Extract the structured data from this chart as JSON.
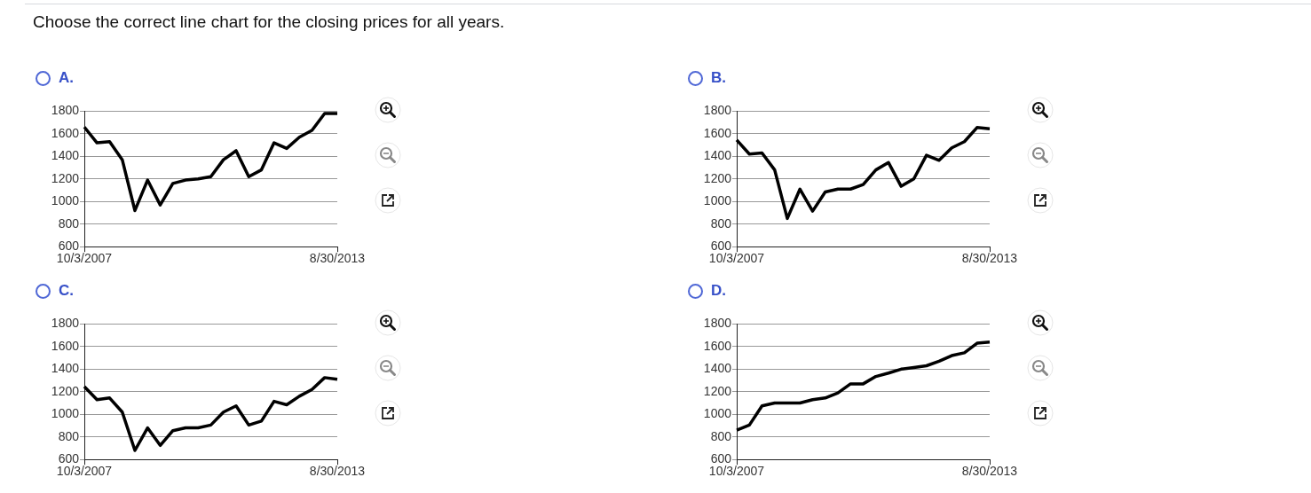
{
  "chart_data": [
    {
      "type": "line",
      "title": "A.",
      "annotations": [
        "Choose the correct line chart for the closing prices for all years."
      ],
      "categories": [
        "10/3/2007",
        null,
        null,
        null,
        null,
        null,
        null,
        null,
        null,
        null,
        null,
        null,
        null,
        null,
        null,
        null,
        null,
        null,
        null,
        null,
        "8/30/2013"
      ],
      "values": [
        1660,
        1520,
        1530,
        1370,
        920,
        1190,
        970,
        1160,
        1190,
        1200,
        1220,
        1370,
        1450,
        1220,
        1280,
        1520,
        1470,
        1570,
        1630,
        1780,
        1780
      ],
      "color": "#000000",
      "ylim": [
        600,
        1800
      ],
      "yticks": [
        600,
        800,
        1000,
        1200,
        1400,
        1600,
        1800
      ],
      "grid": "y",
      "marker": "none"
    },
    {
      "type": "line",
      "title": "B.",
      "categories": [
        "10/3/2007",
        null,
        null,
        null,
        null,
        null,
        null,
        null,
        null,
        null,
        null,
        null,
        null,
        null,
        null,
        null,
        null,
        null,
        null,
        null,
        "8/30/2013"
      ],
      "values": [
        1545,
        1420,
        1430,
        1280,
        850,
        1110,
        915,
        1085,
        1110,
        1110,
        1150,
        1280,
        1345,
        1135,
        1200,
        1410,
        1365,
        1475,
        1530,
        1655,
        1645
      ],
      "color": "#000000",
      "ylim": [
        600,
        1800
      ],
      "yticks": [
        600,
        800,
        1000,
        1200,
        1400,
        1600,
        1800
      ],
      "grid": "y",
      "marker": "none"
    },
    {
      "type": "line",
      "title": "C.",
      "categories": [
        "10/3/2007",
        null,
        null,
        null,
        null,
        null,
        null,
        null,
        null,
        null,
        null,
        null,
        null,
        null,
        null,
        null,
        null,
        null,
        null,
        null,
        "8/30/2013"
      ],
      "values": [
        1245,
        1130,
        1145,
        1020,
        680,
        880,
        725,
        855,
        880,
        880,
        905,
        1020,
        1075,
        905,
        940,
        1115,
        1085,
        1160,
        1220,
        1325,
        1310
      ],
      "color": "#000000",
      "ylim": [
        600,
        1800
      ],
      "yticks": [
        600,
        800,
        1000,
        1200,
        1400,
        1600,
        1800
      ],
      "grid": "y",
      "marker": "none"
    },
    {
      "type": "line",
      "title": "D.",
      "categories": [
        "10/3/2007",
        null,
        null,
        null,
        null,
        null,
        null,
        null,
        null,
        null,
        null,
        null,
        null,
        null,
        null,
        null,
        null,
        null,
        null,
        null,
        "8/30/2013"
      ],
      "values": [
        860,
        905,
        1075,
        1100,
        1100,
        1100,
        1130,
        1145,
        1190,
        1270,
        1270,
        1335,
        1365,
        1400,
        1415,
        1430,
        1470,
        1520,
        1545,
        1630,
        1640
      ],
      "color": "#000000",
      "ylim": [
        600,
        1800
      ],
      "yticks": [
        600,
        800,
        1000,
        1200,
        1400,
        1600,
        1800
      ],
      "grid": "y",
      "marker": "none"
    }
  ]
}
